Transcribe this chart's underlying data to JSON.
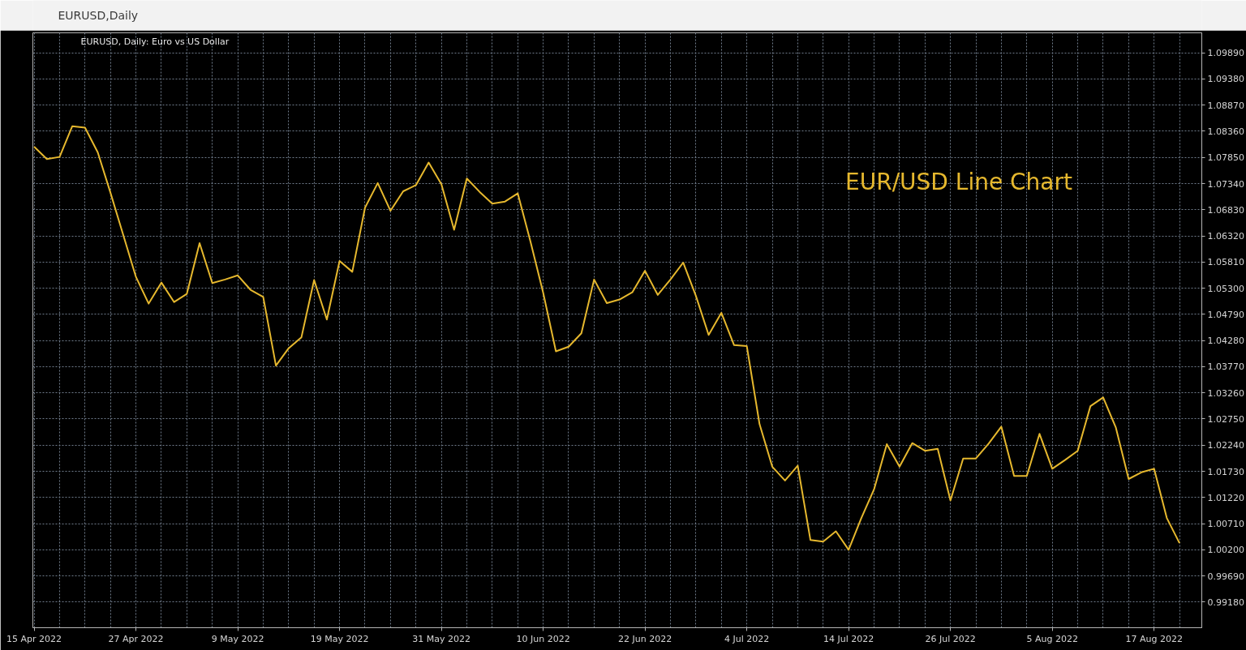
{
  "chart_data": {
    "type": "line",
    "title": "EURUSD,Daily",
    "subtitle": "EURUSD, Daily:  Euro vs US Dollar",
    "annotations": [
      "EUR/USD   Line Chart"
    ],
    "categories": [
      "15 Apr 2022",
      null,
      null,
      null,
      null,
      null,
      null,
      null,
      "27 Apr 2022",
      null,
      null,
      null,
      null,
      null,
      null,
      null,
      "9 May 2022",
      null,
      null,
      null,
      null,
      null,
      null,
      null,
      "19 May 2022",
      null,
      null,
      null,
      null,
      null,
      null,
      null,
      "31 May 2022",
      null,
      null,
      null,
      null,
      null,
      null,
      null,
      "10 Jun 2022",
      null,
      null,
      null,
      null,
      null,
      null,
      null,
      "22 Jun 2022",
      null,
      null,
      null,
      null,
      null,
      null,
      null,
      "4 Jul 2022",
      null,
      null,
      null,
      null,
      null,
      null,
      null,
      "14 Jul 2022",
      null,
      null,
      null,
      null,
      null,
      null,
      null,
      "26 Jul 2022",
      null,
      null,
      null,
      null,
      null,
      null,
      null,
      "5 Aug 2022",
      null,
      null,
      null,
      null,
      null,
      null,
      null,
      "17 Aug 2022",
      null,
      null
    ],
    "series": [
      {
        "color": "#e6b82e",
        "values": [
          1.0806,
          1.0782,
          1.0786,
          1.0846,
          1.0843,
          1.0795,
          1.0716,
          1.0634,
          1.0552,
          1.05,
          1.0541,
          1.0503,
          1.0519,
          1.0618,
          1.054,
          1.0547,
          1.0555,
          1.0527,
          1.0513,
          1.0379,
          1.0413,
          1.0434,
          1.0546,
          1.0469,
          1.0583,
          1.0562,
          1.0687,
          1.0735,
          1.0681,
          1.0719,
          1.0731,
          1.0775,
          1.0733,
          1.0644,
          1.0744,
          1.0718,
          1.0695,
          1.0699,
          1.0715,
          1.0621,
          1.0521,
          1.0407,
          1.0416,
          1.0442,
          1.0547,
          1.0501,
          1.0508,
          1.0522,
          1.0564,
          1.0517,
          1.0547,
          1.058,
          1.0515,
          1.0439,
          1.0482,
          1.0419,
          1.0417,
          1.0265,
          1.0182,
          1.0155,
          1.0184,
          1.0039,
          1.0036,
          1.0056,
          1.002,
          1.0082,
          1.0138,
          1.0226,
          1.0182,
          1.0228,
          1.0213,
          1.0217,
          1.0116,
          1.0198,
          1.0198,
          1.0227,
          1.026,
          1.0164,
          1.0164,
          1.0246,
          1.0178,
          1.0195,
          1.0213,
          1.03,
          1.0317,
          1.0258,
          1.0158,
          1.0171,
          1.0178,
          1.0082,
          1.0033
        ]
      }
    ],
    "ylim": [
      0.9868,
      1.1028
    ],
    "yticks": [
      {
        "value": 0.9918,
        "label": "0.99180"
      },
      {
        "value": 0.9969,
        "label": "0.99690"
      },
      {
        "value": 1.002,
        "label": "1.00200"
      },
      {
        "value": 1.0071,
        "label": "1.00710"
      },
      {
        "value": 1.0122,
        "label": "1.01220"
      },
      {
        "value": 1.0173,
        "label": "1.01730"
      },
      {
        "value": 1.0224,
        "label": "1.02240"
      },
      {
        "value": 1.0275,
        "label": "1.02750"
      },
      {
        "value": 1.0326,
        "label": "1.03260"
      },
      {
        "value": 1.0377,
        "label": "1.03770"
      },
      {
        "value": 1.0428,
        "label": "1.04280"
      },
      {
        "value": 1.0479,
        "label": "1.04790"
      },
      {
        "value": 1.053,
        "label": "1.05300"
      },
      {
        "value": 1.0581,
        "label": "1.05810"
      },
      {
        "value": 1.0632,
        "label": "1.06320"
      },
      {
        "value": 1.0683,
        "label": "1.06830"
      },
      {
        "value": 1.0734,
        "label": "1.07340"
      },
      {
        "value": 1.0785,
        "label": "1.07850"
      },
      {
        "value": 1.0836,
        "label": "1.08360"
      },
      {
        "value": 1.0887,
        "label": "1.08870"
      },
      {
        "value": 1.0938,
        "label": "1.09380"
      },
      {
        "value": 1.0989,
        "label": "1.09890"
      }
    ],
    "grid": true
  }
}
